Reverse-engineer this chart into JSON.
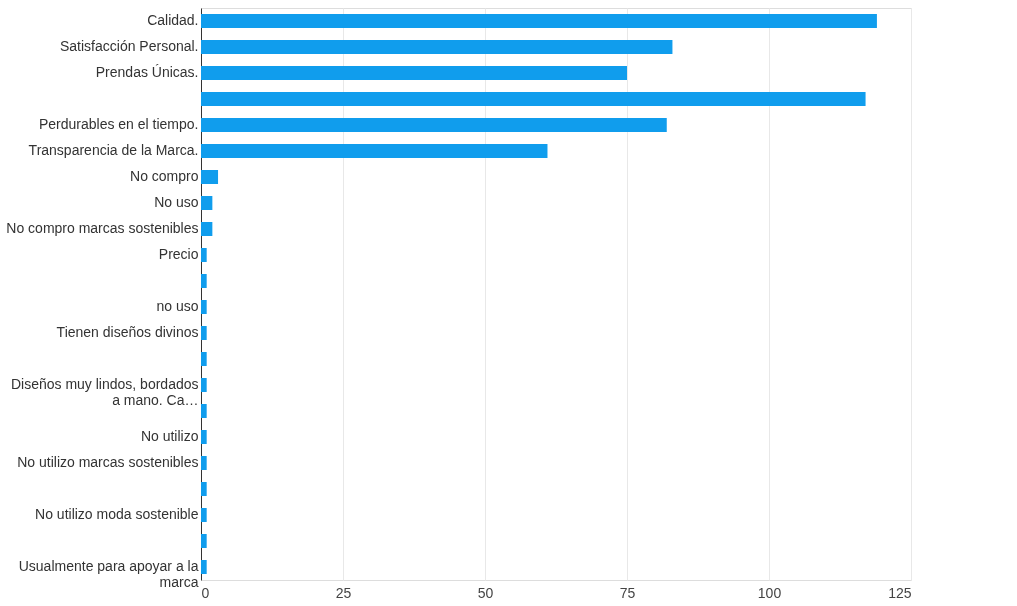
{
  "chart_data": {
    "type": "bar",
    "orientation": "horizontal",
    "categories": [
      "Calidad.",
      "Satisfacción Personal.",
      "Prendas Únicas.",
      null,
      "Perdurables en el tiempo.",
      "Transparencia de la Marca.",
      "No compro",
      "No uso",
      "No compro marcas sostenibles",
      "Precio",
      null,
      "no uso",
      "Tienen diseños divinos",
      null,
      "Diseños muy lindos, bordados a mano. Ca…",
      null,
      "No utilizo",
      "No utilizo marcas sostenibles",
      null,
      "No utilizo moda sostenible",
      null,
      "Usualmente para apoyar a la marca"
    ],
    "values": [
      119,
      83,
      75,
      117,
      82,
      61,
      3,
      2,
      2,
      1,
      1,
      1,
      1,
      1,
      1,
      1,
      1,
      1,
      1,
      1,
      1,
      1
    ],
    "color": "#109ded",
    "xlim": [
      0,
      125
    ],
    "xticks": [
      0,
      25,
      50,
      75,
      100,
      125
    ],
    "grid": "x"
  }
}
